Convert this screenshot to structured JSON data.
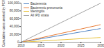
{
  "chart_data": {
    "type": "line",
    "y_label": "Cumulative cases averted by PCVs",
    "x": [
      2010,
      2011,
      2012,
      2013,
      2014,
      2015,
      2016,
      2017,
      2018,
      2019,
      2020,
      2021,
      2022,
      2023,
      2024,
      2025,
      2026,
      2027,
      2028,
      2029,
      2030
    ],
    "xlim": [
      2010,
      2030
    ],
    "xticks": [
      2010,
      2015,
      2020,
      2025,
      2030
    ],
    "ylim": [
      0,
      100000
    ],
    "yticks": [
      0,
      {
        "value": 20000,
        "label": "20,000"
      },
      {
        "value": 40000,
        "label": "40,000"
      },
      {
        "value": 60000,
        "label": "60,000"
      },
      {
        "value": 80000,
        "label": "80,000"
      },
      {
        "value": 100000,
        "label": "100,000"
      }
    ],
    "legend": "top-left",
    "series": [
      {
        "name": "Bacteremia",
        "color": "#4a7fc1",
        "values": [
          0,
          1750,
          3500,
          5250,
          7000,
          8750,
          10500,
          12250,
          14000,
          15750,
          17500,
          19250,
          21000,
          22750,
          24500,
          26250,
          28000,
          29750,
          31500,
          33250,
          35000
        ]
      },
      {
        "name": "Bacteremic pneumonia",
        "color": "#e8772e",
        "values": [
          0,
          2250,
          4500,
          6750,
          9000,
          11250,
          13500,
          15750,
          18000,
          20250,
          22500,
          24750,
          27000,
          29250,
          31500,
          33750,
          36000,
          38250,
          40500,
          42750,
          45000
        ]
      },
      {
        "name": "Meningitis",
        "color": "#e9c23a",
        "values": [
          0,
          600,
          1200,
          1800,
          2400,
          3000,
          3600,
          4200,
          4800,
          5400,
          6000,
          6600,
          7200,
          7800,
          8400,
          9000,
          9600,
          10200,
          10800,
          11400,
          12000
        ]
      },
      {
        "name": "All IPD strata",
        "color": "#a0a0a0",
        "values": [
          0,
          5000,
          10000,
          15000,
          20000,
          25000,
          30000,
          35000,
          40000,
          45000,
          50000,
          55000,
          60000,
          65000,
          70000,
          75000,
          80000,
          85000,
          90000,
          95000,
          100000
        ]
      }
    ]
  }
}
